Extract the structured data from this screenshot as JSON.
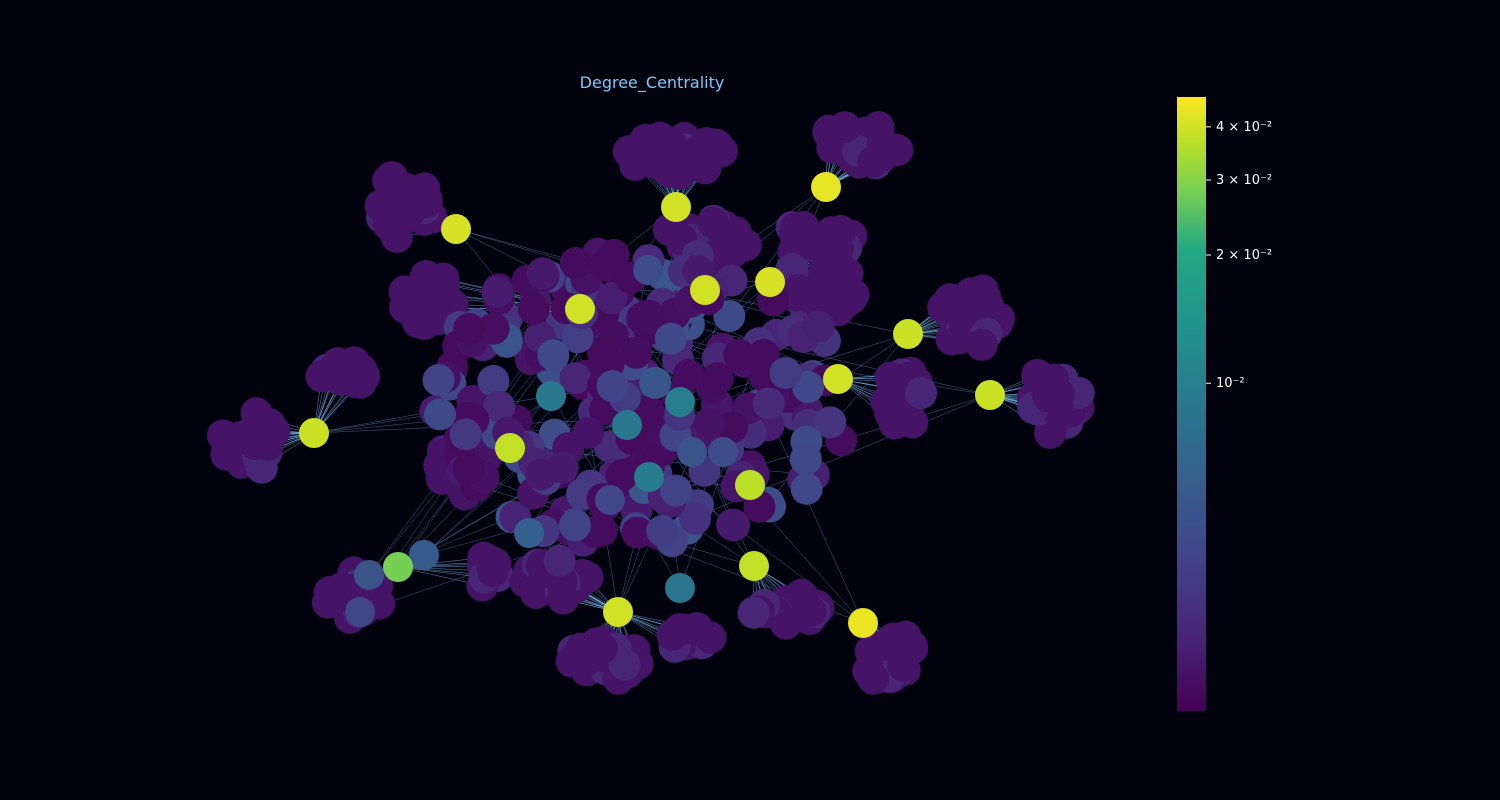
{
  "chart_data": {
    "type": "scatter",
    "title": "Degree_Centrality",
    "graph_kind": "network graph (node-link)",
    "node_color_metric": "degree centrality",
    "colorscale": "viridis",
    "colorbar": {
      "scale": "log",
      "range": [
        0.0017,
        0.047
      ],
      "ticks": [
        {
          "value": 0.04,
          "label": "4 × 10⁻²"
        },
        {
          "value": 0.03,
          "label": "3 × 10⁻²"
        },
        {
          "value": 0.02,
          "label": "2 × 10⁻²"
        },
        {
          "value": 0.01,
          "label": "10⁻²"
        }
      ]
    },
    "hubs": [
      {
        "centrality": 0.043
      },
      {
        "centrality": 0.04
      },
      {
        "centrality": 0.041
      },
      {
        "centrality": 0.04
      },
      {
        "centrality": 0.04
      },
      {
        "centrality": 0.041
      },
      {
        "centrality": 0.039
      },
      {
        "centrality": 0.04
      },
      {
        "centrality": 0.039
      },
      {
        "centrality": 0.039
      },
      {
        "centrality": 0.038
      },
      {
        "centrality": 0.037
      },
      {
        "centrality": 0.038
      },
      {
        "centrality": 0.028
      },
      {
        "centrality": 0.044
      },
      {
        "centrality": 0.04
      }
    ],
    "mid_nodes": [
      {
        "centrality": 0.009
      },
      {
        "centrality": 0.0095
      },
      {
        "centrality": 0.009
      },
      {
        "centrality": 0.01
      },
      {
        "centrality": 0.0085
      },
      {
        "centrality": 0.006
      },
      {
        "centrality": 0.0055
      },
      {
        "centrality": 0.005
      },
      {
        "centrality": 0.005
      },
      {
        "centrality": 0.0045
      },
      {
        "centrality": 0.0045
      },
      {
        "centrality": 0.004
      },
      {
        "centrality": 0.004
      }
    ],
    "edge_color": "#7fc8f8",
    "background": "#02020f",
    "grid": false,
    "legend": "colorbar-right"
  }
}
